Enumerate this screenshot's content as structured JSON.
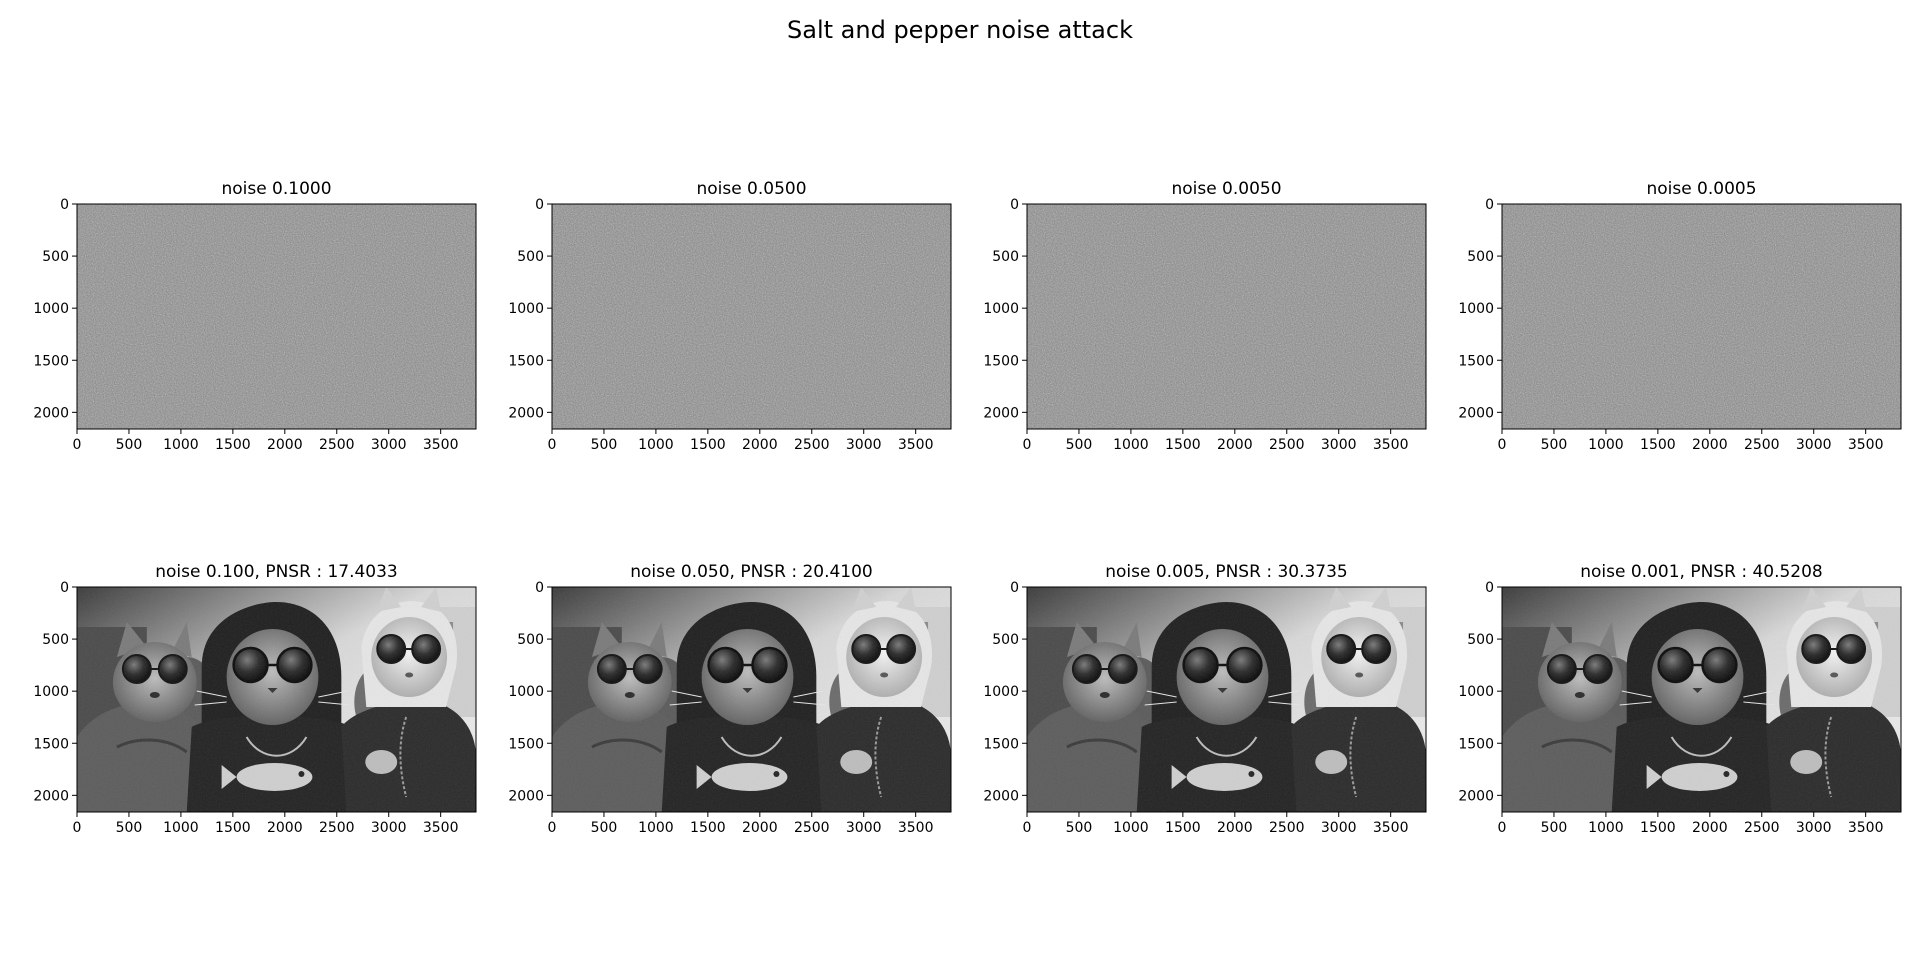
{
  "figure": {
    "title": "Salt and pepper noise attack"
  },
  "colors": {
    "noise_gray": "#808080",
    "axes_edge": "#000000",
    "background": "#ffffff"
  },
  "chart_data": [
    {
      "type": "image",
      "row": 0,
      "col": 0,
      "title": "noise 0.1000",
      "content": "noise-field",
      "xlim": [
        0,
        3840
      ],
      "ylim": [
        2160,
        0
      ],
      "xticks": [
        0,
        500,
        1000,
        1500,
        2000,
        2500,
        3000,
        3500
      ],
      "yticks": [
        0,
        500,
        1000,
        1500,
        2000
      ]
    },
    {
      "type": "image",
      "row": 0,
      "col": 1,
      "title": "noise 0.0500",
      "content": "noise-field",
      "xlim": [
        0,
        3840
      ],
      "ylim": [
        2160,
        0
      ],
      "xticks": [
        0,
        500,
        1000,
        1500,
        2000,
        2500,
        3000,
        3500
      ],
      "yticks": [
        0,
        500,
        1000,
        1500,
        2000
      ]
    },
    {
      "type": "image",
      "row": 0,
      "col": 2,
      "title": "noise 0.0050",
      "content": "noise-field",
      "xlim": [
        0,
        3840
      ],
      "ylim": [
        2160,
        0
      ],
      "xticks": [
        0,
        500,
        1000,
        1500,
        2000,
        2500,
        3000,
        3500
      ],
      "yticks": [
        0,
        500,
        1000,
        1500,
        2000
      ]
    },
    {
      "type": "image",
      "row": 0,
      "col": 3,
      "title": "noise 0.0005",
      "content": "noise-field",
      "xlim": [
        0,
        3840
      ],
      "ylim": [
        2160,
        0
      ],
      "xticks": [
        0,
        500,
        1000,
        1500,
        2000,
        2500,
        3000,
        3500
      ],
      "yticks": [
        0,
        500,
        1000,
        1500,
        2000
      ]
    },
    {
      "type": "image",
      "row": 1,
      "col": 0,
      "title": "noise 0.100, PNSR : 17.4033",
      "content": "grayscale-photo",
      "xlim": [
        0,
        3840
      ],
      "ylim": [
        2160,
        0
      ],
      "xticks": [
        0,
        500,
        1000,
        1500,
        2000,
        2500,
        3000,
        3500
      ],
      "yticks": [
        0,
        500,
        1000,
        1500,
        2000
      ]
    },
    {
      "type": "image",
      "row": 1,
      "col": 1,
      "title": "noise 0.050, PNSR : 20.4100",
      "content": "grayscale-photo",
      "xlim": [
        0,
        3840
      ],
      "ylim": [
        2160,
        0
      ],
      "xticks": [
        0,
        500,
        1000,
        1500,
        2000,
        2500,
        3000,
        3500
      ],
      "yticks": [
        0,
        500,
        1000,
        1500,
        2000
      ]
    },
    {
      "type": "image",
      "row": 1,
      "col": 2,
      "title": "noise 0.005, PNSR : 30.3735",
      "content": "grayscale-photo",
      "xlim": [
        0,
        3840
      ],
      "ylim": [
        2160,
        0
      ],
      "xticks": [
        0,
        500,
        1000,
        1500,
        2000,
        2500,
        3000,
        3500
      ],
      "yticks": [
        0,
        500,
        1000,
        1500,
        2000
      ]
    },
    {
      "type": "image",
      "row": 1,
      "col": 3,
      "title": "noise 0.001, PNSR : 40.5208",
      "content": "grayscale-photo",
      "xlim": [
        0,
        3840
      ],
      "ylim": [
        2160,
        0
      ],
      "xticks": [
        0,
        500,
        1000,
        1500,
        2000,
        2500,
        3000,
        3500
      ],
      "yticks": [
        0,
        500,
        1000,
        1500,
        2000
      ]
    }
  ]
}
